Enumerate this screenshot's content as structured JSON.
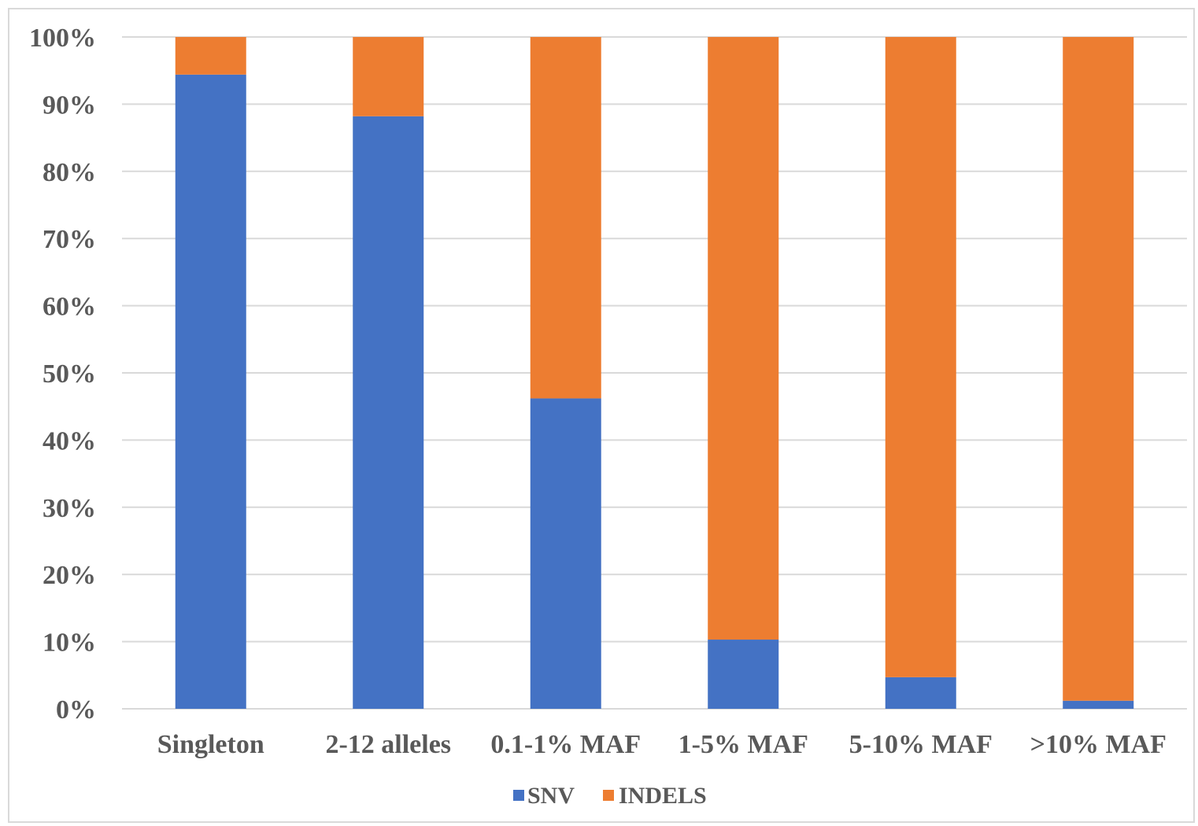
{
  "chart_data": {
    "type": "bar",
    "stacked": true,
    "percent_stacked": true,
    "categories": [
      "Singleton",
      "2-12 alleles",
      "0.1-1%  MAF",
      "1-5% MAF",
      "5-10% MAF",
      ">10% MAF"
    ],
    "series": [
      {
        "name": "SNV",
        "color": "#4472C4",
        "values": [
          94.4,
          88.2,
          46.2,
          10.3,
          4.7,
          1.2
        ]
      },
      {
        "name": "INDELS",
        "color": "#ED7D31",
        "values": [
          5.6,
          11.8,
          53.8,
          89.7,
          95.3,
          98.8
        ]
      }
    ],
    "yticks": [
      "0%",
      "10%",
      "20%",
      "30%",
      "40%",
      "50%",
      "60%",
      "70%",
      "80%",
      "90%",
      "100%"
    ],
    "ylim": [
      0,
      100
    ],
    "grid": true,
    "legend_position": "bottom"
  }
}
